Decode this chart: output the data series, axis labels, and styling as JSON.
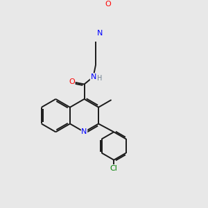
{
  "bg_color": "#e8e8e8",
  "bond_color": "#1a1a1a",
  "N_color": "#0000ff",
  "O_color": "#ff0000",
  "Cl_color": "#008000",
  "H_color": "#708090",
  "linewidth": 1.4,
  "figsize": [
    3.0,
    3.0
  ],
  "dpi": 100,
  "xlim": [
    0,
    10
  ],
  "ylim": [
    0,
    10
  ]
}
